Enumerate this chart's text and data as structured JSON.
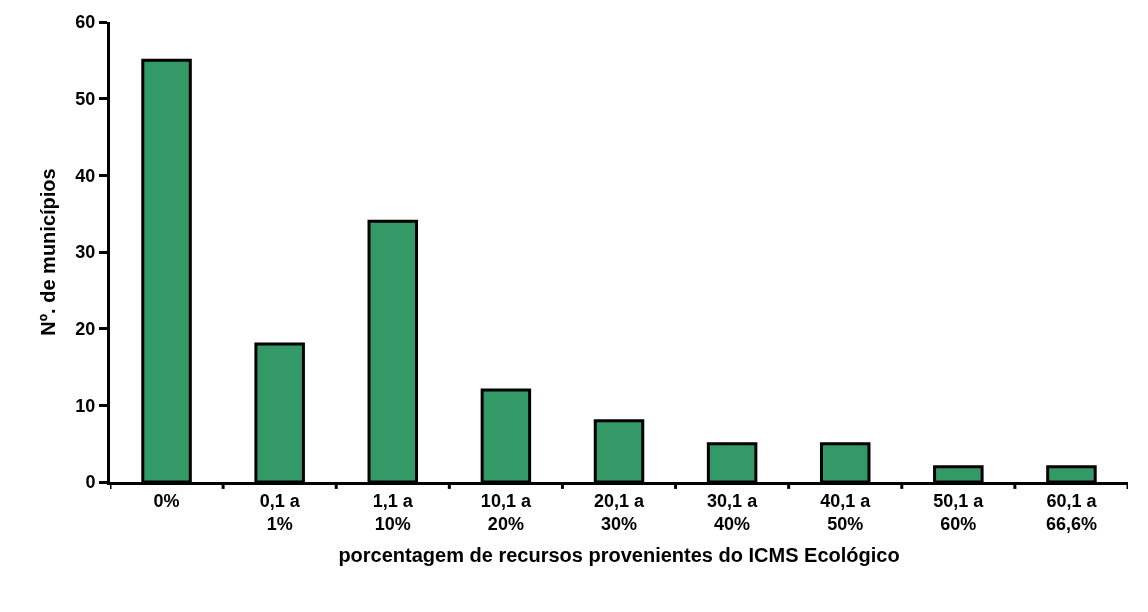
{
  "chart_data": {
    "type": "bar",
    "xlabel": "porcentagem de recursos provenientes do ICMS Ecológico",
    "ylabel": "Nº. de municípios",
    "categories": [
      "0%",
      "0,1 a\n1%",
      "1,1 a\n10%",
      "10,1 a\n20%",
      "20,1 a\n30%",
      "30,1 a\n40%",
      "40,1 a\n50%",
      "50,1 a\n60%",
      "60,1 a\n66,6%"
    ],
    "values": [
      55,
      18,
      34,
      12,
      8,
      5,
      5,
      2,
      2
    ],
    "color": "#339966",
    "ylim": [
      0,
      60
    ],
    "yticks": [
      0,
      10,
      20,
      30,
      40,
      50,
      60
    ]
  }
}
